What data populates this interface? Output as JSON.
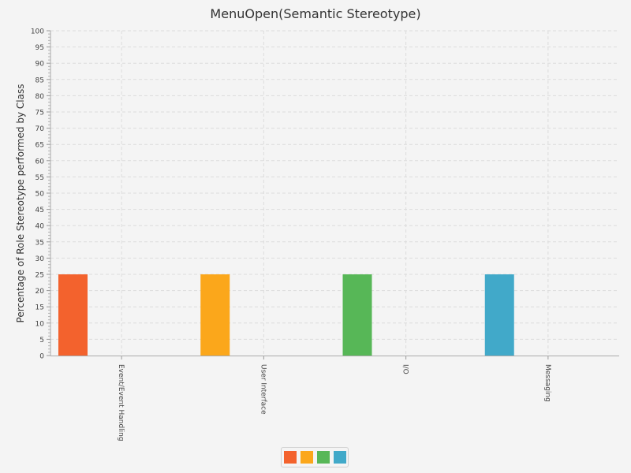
{
  "chart_data": {
    "type": "bar",
    "title": "MenuOpen(Semantic Stereotype)",
    "xlabel": "",
    "ylabel": "Percentage of Role Stereotype performed by Class",
    "categories": [
      "Event/Event Handling",
      "User Interface",
      "I/O",
      "Messaging"
    ],
    "values": [
      25,
      25,
      25,
      25
    ],
    "ylim": [
      0,
      100
    ],
    "yticks": [
      0,
      5,
      10,
      15,
      20,
      25,
      30,
      35,
      40,
      45,
      50,
      55,
      60,
      65,
      70,
      75,
      80,
      85,
      90,
      95,
      100
    ],
    "grid": true,
    "legend_position": "bottom-center",
    "colors": [
      "#f3622d",
      "#fba71b",
      "#57b757",
      "#41a9c9"
    ]
  }
}
